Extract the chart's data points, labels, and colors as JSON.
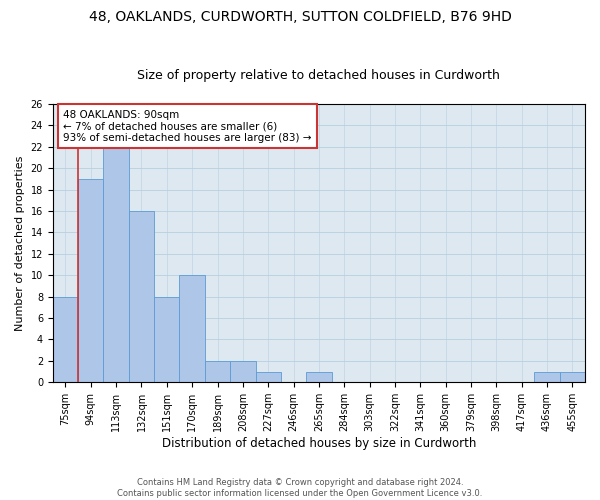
{
  "title1": "48, OAKLANDS, CURDWORTH, SUTTON COLDFIELD, B76 9HD",
  "title2": "Size of property relative to detached houses in Curdworth",
  "xlabel": "Distribution of detached houses by size in Curdworth",
  "ylabel": "Number of detached properties",
  "footer1": "Contains HM Land Registry data © Crown copyright and database right 2024.",
  "footer2": "Contains public sector information licensed under the Open Government Licence v3.0.",
  "annotation_title": "48 OAKLANDS: 90sqm",
  "annotation_line2": "← 7% of detached houses are smaller (6)",
  "annotation_line3": "93% of semi-detached houses are larger (83) →",
  "bins": [
    "75sqm",
    "94sqm",
    "113sqm",
    "132sqm",
    "151sqm",
    "170sqm",
    "189sqm",
    "208sqm",
    "227sqm",
    "246sqm",
    "265sqm",
    "284sqm",
    "303sqm",
    "322sqm",
    "341sqm",
    "360sqm",
    "379sqm",
    "398sqm",
    "417sqm",
    "436sqm",
    "455sqm"
  ],
  "values": [
    8,
    19,
    22,
    16,
    8,
    10,
    2,
    2,
    1,
    0,
    1,
    0,
    0,
    0,
    0,
    0,
    0,
    0,
    0,
    1,
    1
  ],
  "bar_color": "#aec6e8",
  "bar_edge_color": "#5b9bd5",
  "highlight_color": "#cc3333",
  "ylim": [
    0,
    26
  ],
  "yticks": [
    0,
    2,
    4,
    6,
    8,
    10,
    12,
    14,
    16,
    18,
    20,
    22,
    24,
    26
  ],
  "grid_color": "#b8cfe0",
  "bg_color": "#dde8f0",
  "title1_fontsize": 10,
  "title2_fontsize": 9,
  "ylabel_fontsize": 8,
  "xlabel_fontsize": 8.5,
  "tick_fontsize": 7,
  "footer_fontsize": 6,
  "annot_fontsize": 7.5
}
